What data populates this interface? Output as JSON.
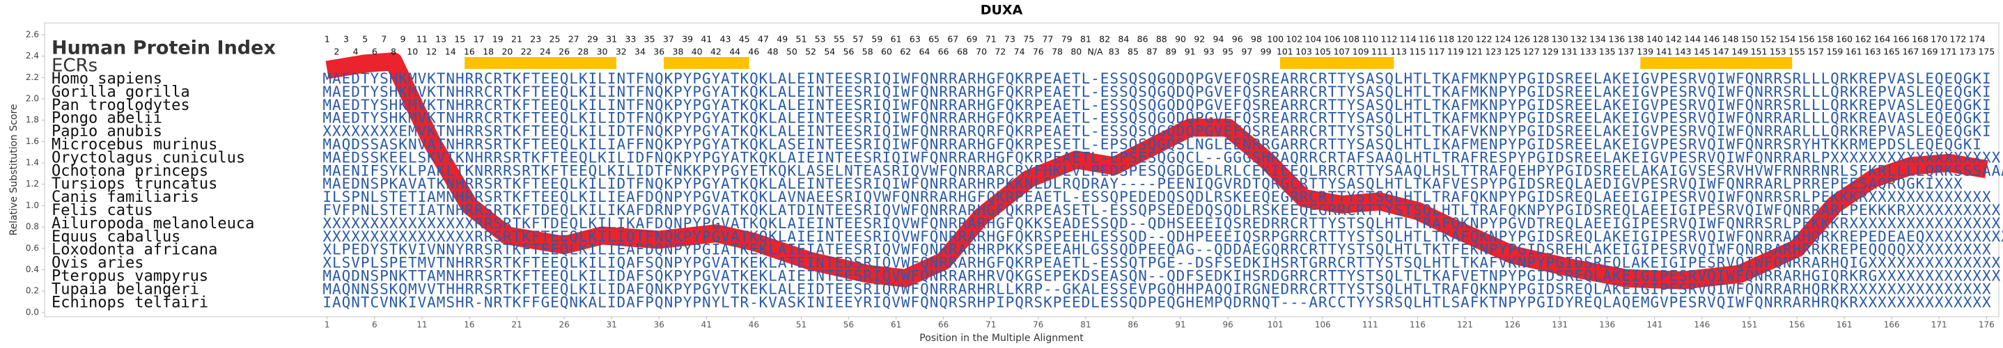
{
  "chart_data": {
    "type": "alignment",
    "title": "DUXA",
    "xlabel": "Position in the Multiple Alignment",
    "ylabel": "Relative Substitution Score",
    "index_label": "Human Protein Index",
    "ecr_label": "ECRs",
    "ecr_color": "#ffc000",
    "color": "#e8101a",
    "sequence_color": "#2a5aa8",
    "index": [
      1,
      2,
      3,
      4,
      5,
      6,
      7,
      8,
      9,
      10,
      11,
      12,
      13,
      14,
      15,
      16,
      17,
      18,
      19,
      20,
      21,
      22,
      23,
      24,
      25,
      26,
      27,
      28,
      29,
      30,
      31,
      32,
      33,
      34,
      35,
      36,
      37,
      38,
      39,
      40,
      41,
      42,
      43,
      44,
      45,
      46,
      47,
      48,
      49,
      50,
      51,
      52,
      53,
      54,
      55,
      56,
      57,
      58,
      59,
      60,
      61,
      62,
      63,
      64,
      65,
      66,
      67,
      68,
      69,
      70,
      71,
      72,
      73,
      74,
      75,
      76,
      77,
      78,
      79,
      80,
      81,
      "N/A",
      82,
      83,
      84,
      85,
      86,
      87,
      88,
      89,
      90,
      91,
      92,
      93,
      94,
      95,
      96,
      97,
      98,
      99,
      100,
      101,
      102,
      103,
      104,
      105,
      106,
      107,
      108,
      109,
      110,
      111,
      112,
      113,
      114,
      115,
      116,
      117,
      118,
      119,
      120,
      121,
      122,
      123,
      124,
      125,
      126,
      127,
      128,
      129,
      130,
      131,
      132,
      133,
      134,
      135,
      136,
      137,
      138,
      139,
      140,
      141,
      142,
      143,
      144,
      145,
      146,
      147,
      148,
      149,
      150,
      151,
      152,
      153,
      154,
      155,
      156,
      157,
      158,
      159,
      160,
      161,
      162,
      163,
      164,
      165,
      166,
      167,
      168,
      169,
      170,
      171,
      172,
      173,
      174,
      175
    ],
    "ecrs": [
      [
        16,
        31
      ],
      [
        37,
        45
      ],
      [
        102,
        113
      ],
      [
        140,
        155
      ]
    ],
    "species": [
      {
        "name": "Homo sapiens",
        "sequence": "MAEDTYSHKMVKTNHRRCRTKFTEEQLKILINTFNQKPYPGYATKQKLALEINTEESRIQIWFQNRRARHGFQKRPEAETL-ESSQSQGQDQPGVEFQSREARRCRTTYSASQLHTLTKAFMKNPYPGIDSREELAKEIGVPESRVQIWFQNRRSRLLLQRKREPVASLEQEQGKI"
      },
      {
        "name": "Gorilla gorilla",
        "sequence": "MAEDTYSHKMVKTNHRRCRTKFTEEQLKILINTFNQKPYPGYATKQKLALEINTEESRIQIWFQNRRARHGFQKRPEAETL-ESSQSQGQDQPGVEFQSREARRCRTTYSASQLHTLTKAFMKNPYPGIDSREELAKEIGVPESRVQIWFQNRRSRLLLQRKREPVASLEQEQGKI"
      },
      {
        "name": "Pan troglodytes",
        "sequence": "MAEDTYSHKMVKTNHRRCRTKFTEEQLKILINTFNQKPYPGYATKQKLALEINTEESRIQIWFQNRRARHGFQKRPEAETL-ESSQSQGQDQPGVEFQSREARRCRTTYSASQLHTLTKAFMKNPYPGIDSREELAKEIGVPESRVQIWFQNRRSRLLLQRKREPVASLEQEQGKI"
      },
      {
        "name": "Pongo abelii",
        "sequence": "MAEDTYSHKMVKTNHRRCRTKFTEEQLKILIDTFNQKPYPGYATKQKLALEINTEESRIQIWFQNRRARHGFQKRPEAETL-ESSQSQGQDQPGVEFQSREARRCRTTYSASQLHTLTKAFMKNPYPGIDSREELAKEIGVPESRVQIWFQNRRARLLLQRKREAVASLEQEQGKI"
      },
      {
        "name": "Papio anubis",
        "sequence": "XXXXXXXXEMVKTNHRRSRTKFTEEQLKILIDTFNQKPYPGYATKQKLALEINTEESRIQIWFQNRRARQRFQKRPEAETL-ESSQSQGQDQPGVEFQSREARRCRTTYSTSQLHTLTKAFVKNPYPGIDSREELAKEIGVPESRVQIWFQNRRARLLLQRKREPVASLEQEQGKI"
      },
      {
        "name": "Microcebus murinus",
        "sequence": "MAQDSSASKNVATNHRRSRTKFTEEQLKILIAFFNQKPYPGYATKQKLASEINTEESRIQIWFQNRRARHGFQKRPESETL-EPSQSQGQSLNGLEENRRGARRCRTTYSASQLHTLIKAFMENPYPGIDSREELAKEIGVPESRVQIWFQNRRSRYHTKKRMEPDSLEQEQGKI"
      },
      {
        "name": "Oryctolagus cuniculus",
        "sequence": "MAEDSSKEELSKVTKNHRRSRTKFTEEQLKILIDFNQKPYPGYATKQKLAIEINTEESRIQIWFQNRRARHGFQKRPEAETL-EPSESQGQCL--GGGSHRAQRRCRTAFSAAQLHTLTRAFRESPYPGIDSREELAKEIGVPESRVQIWFQNRRARLPXXXXXXXXXXXXXXXXXX"
      },
      {
        "name": "Ochotona princeps",
        "sequence": "MAENIFSYKLPAKLTKNRRRSRTKFTEEQLKILIDTFNKKPYPGYETKQKLASELNTEASRIQVWFQNRRARCRYFHKLVLPEDSPESQGDGEDLRLCEKIEEQLRRCRTTYSAAQLHSLTTRAFQEHPYPGIDSREELAKAIGVSESRVHVWFRNRRNRLSFKRLLLLQRKSSSAAAA"
      },
      {
        "name": "Tursiops truncatus",
        "sequence": "MAEDNSPKAVATKNHRRSRTKFTEEQLKILIDTFNQKPYPGYATKQKLALEINTEESRIQIWFQNRRARHRPKKNLDLRQDRAY----PEENIQGVRDTQRGCRTTYSASQLHTLTKAFVESPYPGIDSREQLAEDIGVPESRVQIWFQNRRARLPRREPEESAQRQGKIXXX"
      },
      {
        "name": "Canis familiaris",
        "sequence": "ILSPNLSTETIAMNHRRSRTKFTEEQLKILIEAFDQNPYPGVATKQKLAVNAEESRIQVWFQNRRARHGFQKRPEAETL-ESSQPEDEDQSQDLRSKEEQEGRRCRTTYSTSQLHTLTRAFQKNPYPGIDSREQLAEEIGIPESRVQIWFQNRRSRLPEKKKRXXXXXXXXXXXXX"
      },
      {
        "name": "Felis catus",
        "sequence": "FVFPNLSTETIATNHRRSRTKFTDEQLKILIKAFDRNPYPGVATKQKLATDINTEESRIQVWFQNRRARHGFQKRPEASETL-ESSQPSEDEDQSQDLRSKEEQEGRRCRTTYSTSQLHTLTRAFQKNPYPGIDSREQLAEEIGIPESRVQIWFQNRRARLPEKKKRXXXXXXXXXX"
      },
      {
        "name": "Ailuropoda melanoleuca",
        "sequence": "XXXXXXXXXXXXXXXXRRSRTKFTDEQLKILIKAFDQNPYPGVATKQKLAIEINTEESRIQVWFQNRRARHGFQKKSEADESSQD--QDHSEEEIQSREDRRCRTTYSTSQLHTLTRAFQKNPYPGVDTREQLAEEIGIPESRVQIWFQNRRSRLPEKKKRXXXXXXXXXXXXXXXX"
      },
      {
        "name": "Equus caballus",
        "sequence": "XXXXXXXXXXXXXXXXRRSRTKFTEEQLKILIDTFNQKPYPGVATKQKLAIEINTEESRIQVWFQNRRARHGFQKRSPEEHLESSQD--QDHPEEEIQSRPGRRCRTTYSTSQLHTLTKAFQKNPYPGIDSREQLAKEIGIPESRVQIWFQNRRARHQRKREPEDEAEQXXXXXXXXX"
      },
      {
        "name": "Loxodonta africana",
        "sequence": "XLPEDYSTKVIVNNYRRSRTKFTEEQLKILIEAFDQNPYPGIATKEKLAIEIATEESRIQVWFQNRRARHRPKKSPEEAHLGSSQDPEEQAG--QDDAEGQRRCRTTYSTSQLHTLTKTFEKNPYPGIDSREHLAKEIGIPESRVQIWFQNRRARHRRKREPEQQQQXXXXXXXXX"
      },
      {
        "name": "Ovis aries",
        "sequence": "XLSVPLSPETMVTNHRRSRTKFTEEQLKILIQAFSQNPYPGVATKEKLATEINTEDSRIQVWFQNRRARHGFQKRPEAETL-ESSQTPGE--DSFSEDKIHSRTGRRCRTTYSTSQLHTLTKAFVKNPYPGIDSREQLAKEIGIPESRVQIWFQNRRARHQIGXXXXXXXXXXXXXX"
      },
      {
        "name": "Pteropus vampyrus",
        "sequence": "MAQDNSPNKTTAMNHRRSRTKFTEEQLKILIDAFSQKPYPGVATKEKLAIEINTEESRIQVWFQNRRARHRVQKGSEPEKDSEASQN--QDFSEDKIHSRDGRRCRTTYSTSQLTLTKAFVETNPYPGIDSREQLAKEIGIPESRVQIWFQNRRARHGIQRKRGXXXXXXXXXXXXX"
      },
      {
        "name": "Tupaia belangeri",
        "sequence": "MAQNNSSKQMVVTHHRRSRTKFTEEQLKILIDAFQNKPYPGYVTKEKLALEIDTEESRIQVWFQNRRARHRLLKRP--GKALESSEVPGQHHPAQQIRGNEDRRCRTTYSTSQLHTLTRAFQKNPYPGIDSREQLAKEIGIPESRVQIWFQNRRARHQRKRXXXXXXXXXXXXXXX"
      },
      {
        "name": "Echinops telfairi",
        "sequence": "IAQNTCVNKIVAMSHR-NRTKFFGEQNKALIDAFPQNPYPNYLTR-KVASKINIEEYRIQVWFQNQRSRHPIPQRSKPEEDLESSQDPEQGHEMPQDRNQT---ARCCTYYSRSQLHTLSAFKTNPYPGIDYREQLAQEMGVPESRVQIWFQNRRARHRQKRXXXXXXXXXXXXXX"
      }
    ],
    "x": [
      1,
      5,
      8,
      12,
      16,
      20,
      26,
      30,
      36,
      42,
      46,
      52,
      58,
      62,
      66,
      70,
      75,
      80,
      84,
      88,
      92,
      96,
      100,
      104,
      108,
      112,
      116,
      120,
      126,
      132,
      138,
      144,
      150,
      156,
      160,
      164,
      168,
      172,
      176
    ],
    "values": [
      2.27,
      2.33,
      2.35,
      1.6,
      1.0,
      0.72,
      0.63,
      0.72,
      0.68,
      0.74,
      0.66,
      0.48,
      0.36,
      0.32,
      0.48,
      0.9,
      1.25,
      1.43,
      1.37,
      1.55,
      1.73,
      1.73,
      1.43,
      1.07,
      1.01,
      1.04,
      0.95,
      0.78,
      0.54,
      0.42,
      0.32,
      0.3,
      0.36,
      0.6,
      1.01,
      1.25,
      1.37,
      1.4,
      1.34
    ],
    "xlim": [
      -28.8,
      177.3
    ],
    "ylim": [
      -0.04,
      2.71
    ],
    "xticks": [
      1,
      6,
      11,
      16,
      21,
      26,
      31,
      36,
      41,
      46,
      51,
      56,
      61,
      66,
      71,
      76,
      81,
      86,
      91,
      96,
      101,
      106,
      111,
      116,
      121,
      126,
      131,
      136,
      141,
      146,
      151,
      156,
      161,
      166,
      171,
      176
    ],
    "yticks": [
      {
        "value": 0,
        "label": "0.0"
      },
      0.2,
      0.4,
      0.6,
      0.8,
      {
        "value": 1,
        "label": "1.0"
      },
      1.2,
      1.4,
      1.6,
      1.8,
      {
        "value": 2,
        "label": "2.0"
      },
      2.2,
      2.4,
      2.6
    ]
  }
}
